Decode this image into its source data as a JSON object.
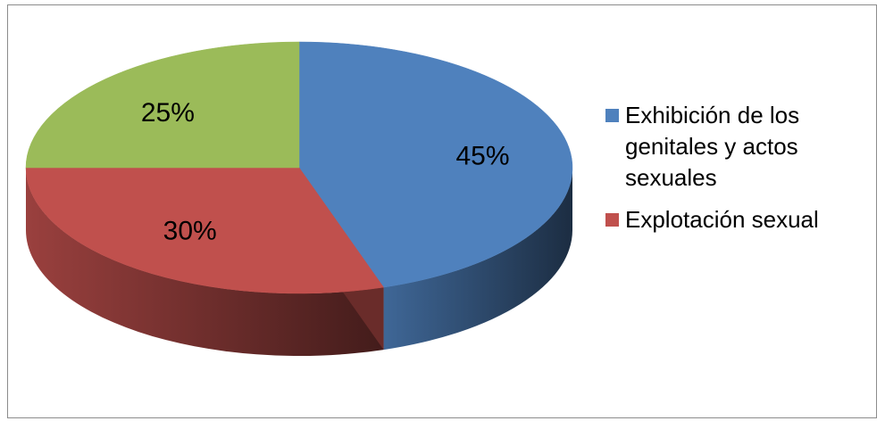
{
  "chart_data": {
    "type": "pie",
    "style": "3d",
    "categories": [
      "Exhibición  de los genitales y actos sexuales",
      "Explotación sexual",
      ""
    ],
    "values": [
      45,
      30,
      25
    ],
    "data_labels": [
      "45%",
      "30%",
      "25%"
    ],
    "colors": [
      "#4f81bd",
      "#c0504d",
      "#9bbb59"
    ],
    "legend": {
      "position": "right",
      "entries": [
        {
          "label": "Exhibición  de los genitales y actos sexuales",
          "color": "#4f81bd"
        },
        {
          "label": "Explotación sexual",
          "color": "#c0504d"
        }
      ]
    }
  }
}
